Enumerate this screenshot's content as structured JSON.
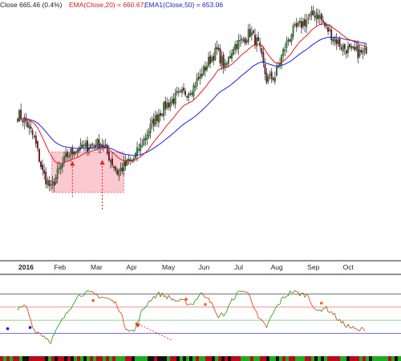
{
  "chart_data": {
    "type": "candlestick",
    "legend": {
      "close_label": "Close 665.46 (0.4%)",
      "ema20_label": "EMA(Close,20) = 660.67,",
      "ema50_label": "EMA1(Close,50) = 653.06"
    },
    "x_axis": {
      "ticks": [
        {
          "label": "2016",
          "week": 0
        },
        {
          "label": "Feb",
          "week": 4.3
        },
        {
          "label": "Mar",
          "week": 8.7
        },
        {
          "label": "Apr",
          "week": 13
        },
        {
          "label": "May",
          "week": 17.3
        },
        {
          "label": "Jun",
          "week": 21.7
        },
        {
          "label": "Jul",
          "week": 26
        },
        {
          "label": "Aug",
          "week": 30.4
        },
        {
          "label": "Sep",
          "week": 34.8
        },
        {
          "label": "Oct",
          "week": 39.1
        }
      ],
      "weeks_shown": 43
    },
    "price": {
      "ylim": [
        485,
        700
      ],
      "weekly_close": [
        612,
        605,
        590,
        560,
        545,
        562,
        575,
        580,
        582,
        584,
        586,
        574,
        560,
        566,
        572,
        586,
        600,
        612,
        620,
        626,
        630,
        634,
        645,
        658,
        668,
        652,
        672,
        676,
        684,
        673,
        642,
        645,
        667,
        684,
        690,
        696,
        702,
        690,
        680,
        672,
        668,
        666,
        665.46
      ],
      "colors": {
        "up": "#22aa22",
        "down": "#9a0a1a",
        "ema20": "#e02020",
        "ema50": "#2020dd"
      }
    },
    "highlight_box": {
      "x_weeks": [
        4.1,
        12.8
      ],
      "price": [
        542,
        578
      ],
      "color": "#f9b8c0"
    },
    "arrows": [
      {
        "week": 6.6,
        "from_price": 538,
        "to_price": 570,
        "color": "#e02020"
      },
      {
        "week": 10.2,
        "from_price": 527,
        "to_price": 571,
        "color": "#e02020"
      }
    ],
    "oscillator": {
      "levels": {
        "upper": 80,
        "mid_upper": 60,
        "mid_lower": 40,
        "lower": 20
      },
      "values": [
        56,
        62,
        25,
        18,
        8,
        32,
        52,
        74,
        82,
        80,
        76,
        72,
        64,
        30,
        22,
        54,
        72,
        80,
        76,
        70,
        68,
        64,
        80,
        76,
        46,
        50,
        74,
        86,
        78,
        42,
        30,
        56,
        74,
        84,
        80,
        78,
        52,
        60,
        50,
        36,
        30,
        24,
        28
      ]
    }
  }
}
